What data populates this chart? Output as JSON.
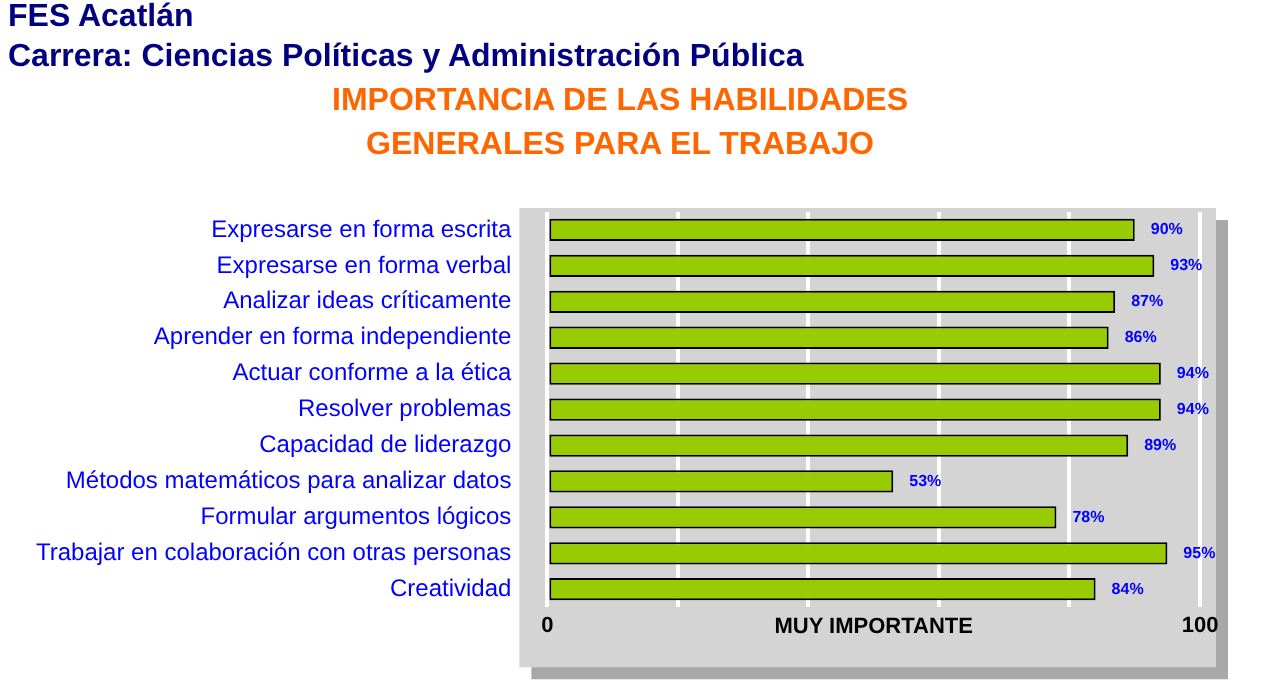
{
  "chart_data": {
    "type": "bar",
    "orientation": "horizontal",
    "title": "IMPORTANCIA DE LAS HABILIDADES GENERALES PARA EL TRABAJO",
    "annotations": [
      "FES Acatlán",
      "Carrera: Ciencias Políticas y Administración Pública"
    ],
    "xlabel": "MUY IMPORTANTE",
    "categories": [
      "Expresarse en forma escrita",
      "Expresarse en forma verbal",
      "Analizar ideas críticamente",
      "Aprender en forma independiente",
      "Actuar conforme a la ética",
      "Resolver problemas",
      "Capacidad de liderazgo",
      "Métodos matemáticos para analizar datos",
      "Formular argumentos lógicos",
      "Trabajar en colaboración con otras personas",
      "Creatividad"
    ],
    "values": [
      90,
      93,
      87,
      86,
      94,
      94,
      89,
      53,
      78,
      95,
      84
    ],
    "value_labels": [
      "90%",
      "93%",
      "87%",
      "86%",
      "94%",
      "94%",
      "89%",
      "53%",
      "78%",
      "95%",
      "84%"
    ],
    "color": "#99cc00",
    "xlim": [
      0,
      100
    ],
    "xticks": [
      0,
      {
        "value": 20,
        "label": null
      },
      {
        "value": 40,
        "label": null
      },
      {
        "value": 60,
        "label": null
      },
      {
        "value": 80,
        "label": null
      },
      100
    ],
    "grid": "x",
    "legend": false
  }
}
